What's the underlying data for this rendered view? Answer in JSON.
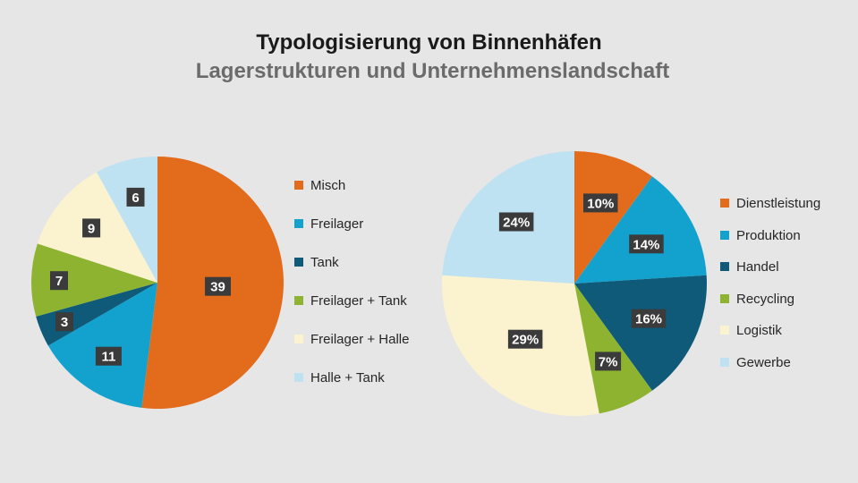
{
  "header": {
    "title": "Typologisierung von Binnenhäfen",
    "subtitle": "Lagerstrukturen und Unternehmenslandschaft"
  },
  "chart_data": [
    {
      "type": "pie",
      "title": "",
      "unit": "",
      "categories": [
        "Misch",
        "Freilager",
        "Tank",
        "Freilager + Tank",
        "Freilager + Halle",
        "Halle + Tank"
      ],
      "values": [
        39,
        11,
        3,
        7,
        9,
        6
      ],
      "labels": [
        "39",
        "11",
        "3",
        "7",
        "9",
        "6"
      ],
      "colors": [
        "#e36c1c",
        "#13a1cd",
        "#0e5a78",
        "#8db330",
        "#fbf3cf",
        "#bfe2f2"
      ],
      "legend_position": "right",
      "start": "top",
      "direction": "clockwise"
    },
    {
      "type": "pie",
      "title": "",
      "unit": "%",
      "categories": [
        "Dienstleistung",
        "Produktion",
        "Handel",
        "Recycling",
        "Logistik",
        "Gewerbe"
      ],
      "values": [
        10,
        14,
        16,
        7,
        29,
        24
      ],
      "labels": [
        "10%",
        "14%",
        "16%",
        "7%",
        "29%",
        "24%"
      ],
      "colors": [
        "#e36c1c",
        "#13a1cd",
        "#0e5a78",
        "#8db330",
        "#fbf3cf",
        "#bfe2f2"
      ],
      "legend_position": "right",
      "start": "top",
      "direction": "clockwise"
    }
  ]
}
